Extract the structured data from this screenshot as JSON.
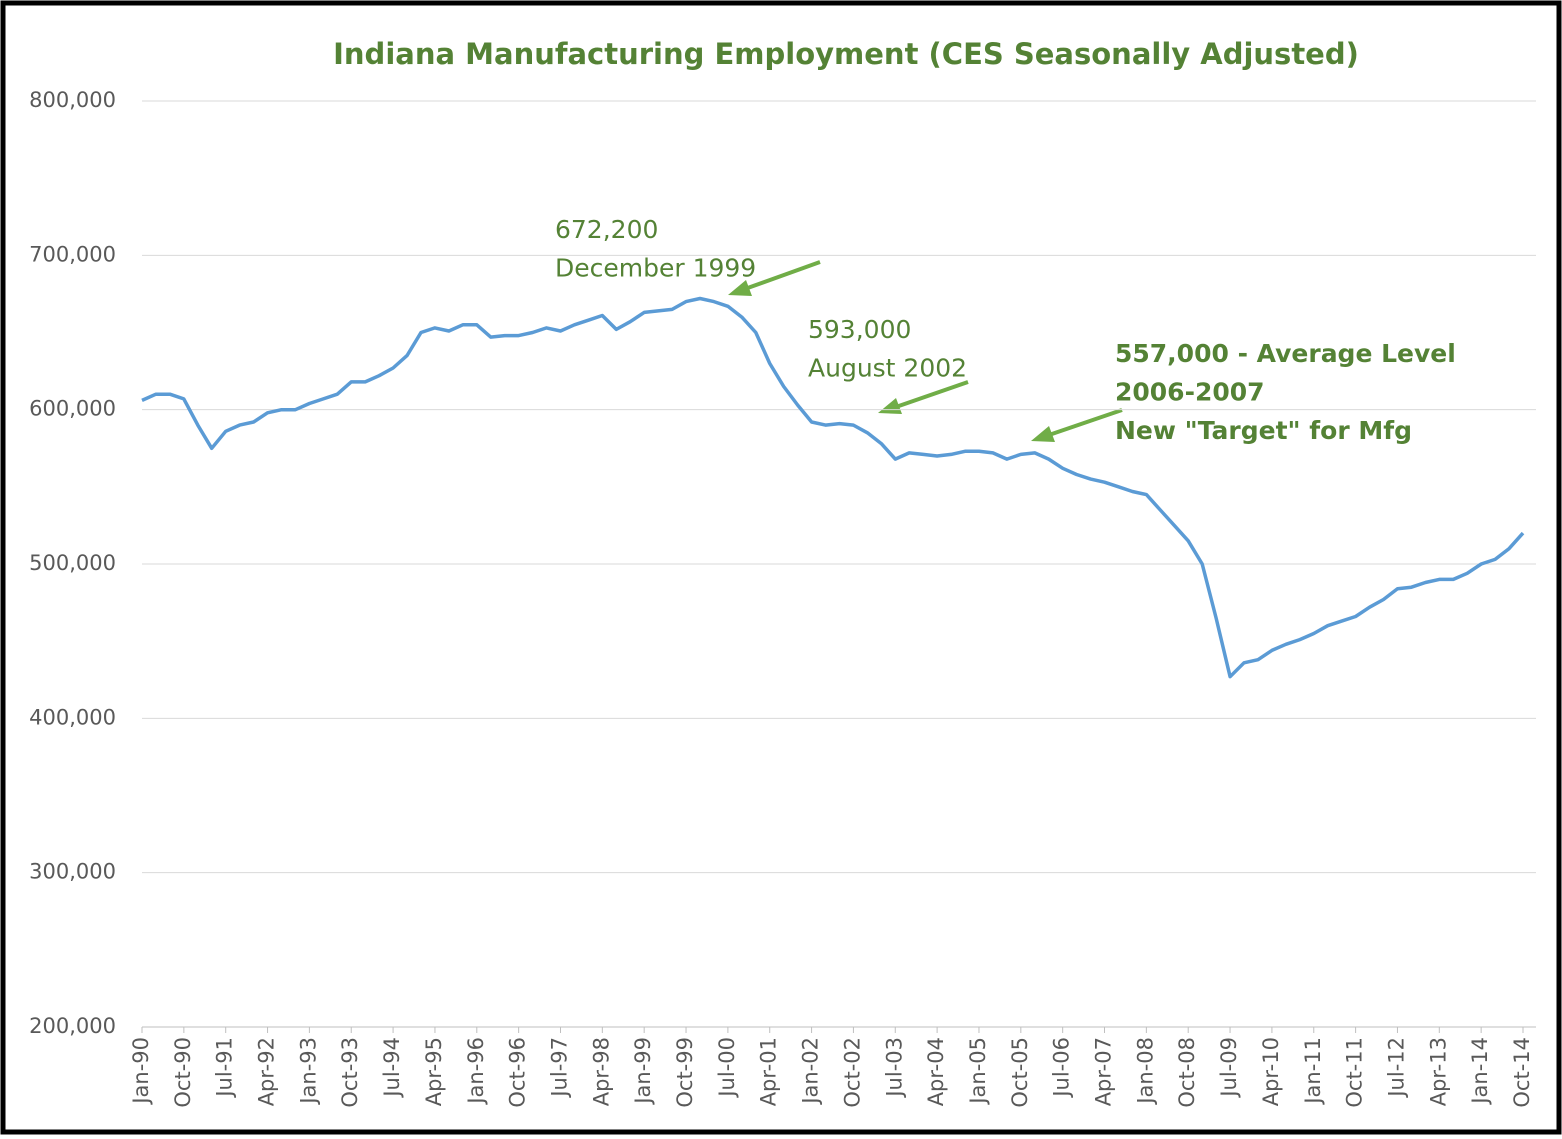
{
  "chart_data": {
    "type": "line",
    "title": "Indiana Manufacturing Employment (CES Seasonally Adjusted)",
    "categories": [
      "Jan-90",
      null,
      null,
      "Oct-90",
      null,
      null,
      "Jul-91",
      null,
      null,
      "Apr-92",
      null,
      null,
      "Jan-93",
      null,
      null,
      "Oct-93",
      null,
      null,
      "Jul-94",
      null,
      null,
      "Apr-95",
      null,
      null,
      "Jan-96",
      null,
      null,
      "Oct-96",
      null,
      null,
      "Jul-97",
      null,
      null,
      "Apr-98",
      null,
      null,
      "Jan-99",
      null,
      null,
      "Oct-99",
      null,
      null,
      "Jul-00",
      null,
      null,
      "Apr-01",
      null,
      null,
      "Jan-02",
      null,
      null,
      "Oct-02",
      null,
      null,
      "Jul-03",
      null,
      null,
      "Apr-04",
      null,
      null,
      "Jan-05",
      null,
      null,
      "Oct-05",
      null,
      null,
      "Jul-06",
      null,
      null,
      "Apr-07",
      null,
      null,
      "Jan-08",
      null,
      null,
      "Oct-08",
      null,
      null,
      "Jul-09",
      null,
      null,
      "Apr-10",
      null,
      null,
      "Jan-11",
      null,
      null,
      "Oct-11",
      null,
      null,
      "Jul-12",
      null,
      null,
      "Apr-13",
      null,
      null,
      "Jan-14",
      null,
      null,
      "Oct-14"
    ],
    "series": [
      {
        "color": "#5b9bd5",
        "values": [
          606000,
          610000,
          610000,
          607000,
          590000,
          575000,
          586000,
          590000,
          592000,
          598000,
          600000,
          600000,
          604000,
          607000,
          610000,
          618000,
          618000,
          622000,
          627000,
          635000,
          650000,
          653000,
          651000,
          655000,
          655000,
          647000,
          648000,
          648000,
          650000,
          653000,
          651000,
          655000,
          658000,
          661000,
          652000,
          657000,
          663000,
          664000,
          665000,
          670000,
          672000,
          670000,
          667000,
          660000,
          650000,
          630000,
          615000,
          603000,
          592000,
          590000,
          591000,
          590000,
          585000,
          578000,
          568000,
          572000,
          571000,
          570000,
          571000,
          573000,
          573000,
          572000,
          568000,
          571000,
          572000,
          568000,
          562000,
          558000,
          555000,
          553000,
          550000,
          547000,
          545000,
          535000,
          525000,
          515000,
          500000,
          465000,
          427000,
          436000,
          438000,
          444000,
          448000,
          451000,
          455000,
          460000,
          463000,
          466000,
          472000,
          477000,
          484000,
          485000,
          488000,
          490000,
          490000,
          494000,
          500000,
          503000,
          510000,
          520000
        ]
      }
    ],
    "ylim": [
      200000,
      800000
    ],
    "yticks": [
      {
        "value": 200000,
        "label": "200,000"
      },
      {
        "value": 300000,
        "label": "300,000"
      },
      {
        "value": 400000,
        "label": "400,000"
      },
      {
        "value": 500000,
        "label": "500,000"
      },
      {
        "value": 600000,
        "label": "600,000"
      },
      {
        "value": 700000,
        "label": "700,000"
      },
      {
        "value": 800000,
        "label": "800,000"
      }
    ],
    "grid": true,
    "annotations": [
      {
        "lines": [
          "672,200",
          "December 1999"
        ]
      },
      {
        "lines": [
          "593,000",
          "August 2002"
        ]
      },
      {
        "lines": [
          "557,000 - Average Level",
          "2006-2007",
          "New \"Target\" for Mfg"
        ]
      }
    ]
  }
}
